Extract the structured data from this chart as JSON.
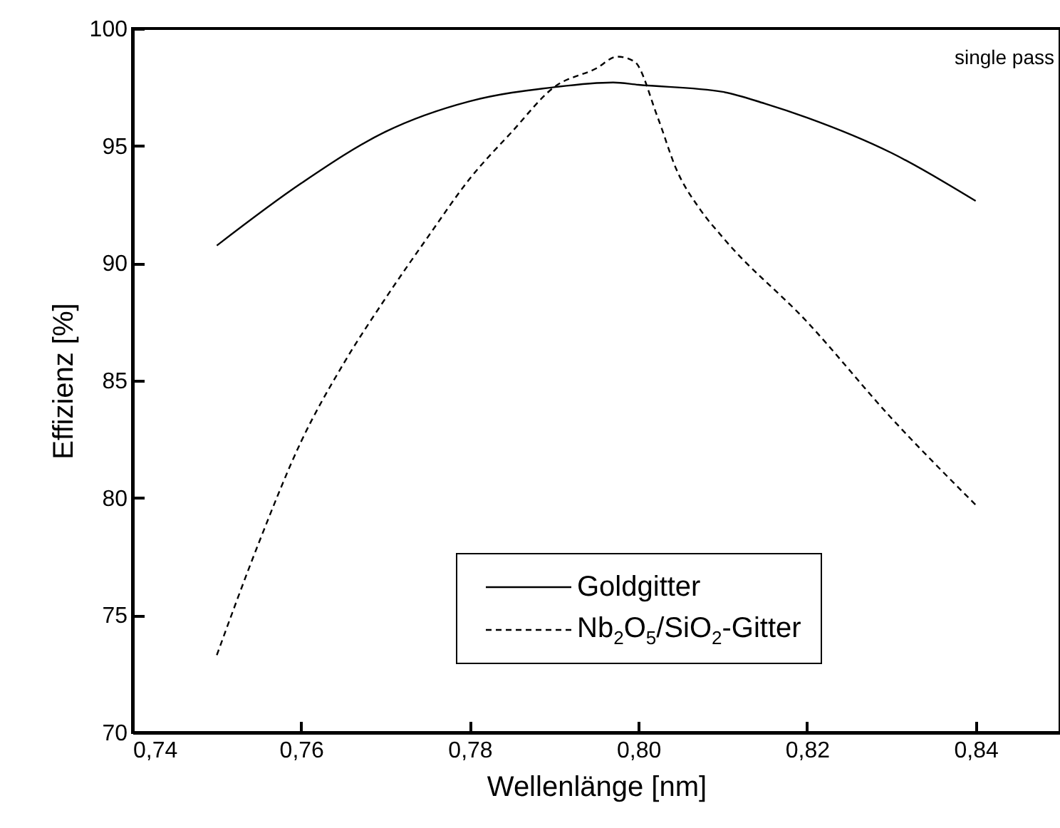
{
  "chart_data": {
    "type": "line",
    "xlabel": "Wellenlänge [nm]",
    "ylabel": "Effizienz [%]",
    "annotations": [
      "single pass"
    ],
    "xlim": [
      0.74,
      0.85
    ],
    "xticks": [
      {
        "value": 0.74,
        "label": "0,74"
      },
      {
        "value": 0.76,
        "label": "0,76"
      },
      {
        "value": 0.78,
        "label": "0,78"
      },
      {
        "value": 0.8,
        "label": "0,80"
      },
      {
        "value": 0.82,
        "label": "0,82"
      },
      {
        "value": 0.84,
        "label": "0,84"
      }
    ],
    "ylim": [
      70,
      100
    ],
    "yticks": [
      70,
      75,
      80,
      85,
      90,
      95,
      100
    ],
    "grid": false,
    "legend": "bottom right",
    "marker": "none",
    "series": [
      {
        "name": "Goldgitter",
        "color": "#000000",
        "line_style": "solid",
        "x": [
          0.75,
          0.76,
          0.77,
          0.78,
          0.79,
          0.797,
          0.8,
          0.81,
          0.815,
          0.82,
          0.83,
          0.84
        ],
        "values": [
          90.75,
          93.4,
          95.6,
          96.9,
          97.5,
          97.7,
          97.6,
          97.3,
          96.8,
          96.2,
          94.7,
          92.65
        ]
      },
      {
        "name": "Nb$_{2}$O$_{5}$/SiO$_{2}$-Gitter",
        "color": "#000000",
        "line_style": "dashed",
        "x": [
          0.75,
          0.755,
          0.76,
          0.765,
          0.77,
          0.775,
          0.78,
          0.785,
          0.79,
          0.795,
          0.7975,
          0.7995,
          0.8023,
          0.8045,
          0.8073,
          0.81,
          0.82,
          0.83,
          0.84
        ],
        "values": [
          73.3,
          78.1,
          82.4,
          85.7,
          88.5,
          91.1,
          93.6,
          95.6,
          97.5,
          98.3,
          98.8,
          98.6,
          96.2,
          94.0,
          92.3,
          91.1,
          87.5,
          83.4,
          79.7
        ]
      }
    ]
  }
}
